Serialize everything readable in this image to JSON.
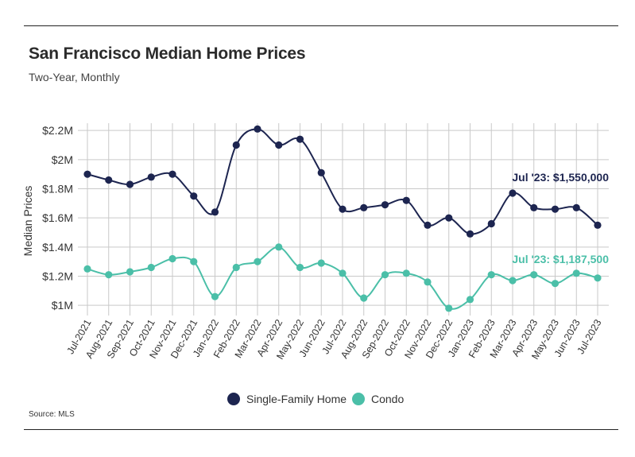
{
  "header": {
    "title": "San Francisco Median Home Prices",
    "subtitle": "Two-Year, Monthly"
  },
  "footer": {
    "source": "Source: MLS"
  },
  "colors": {
    "single_family": "#1d2550",
    "condo": "#4bbfa8",
    "grid": "#c9c9c9"
  },
  "chart_data": {
    "type": "line",
    "title": "San Francisco Median Home Prices",
    "subtitle": "Two-Year, Monthly",
    "xlabel": "",
    "ylabel": "Median Prices",
    "ylim": [
      930000,
      2250000
    ],
    "yticks": [
      1000000,
      1200000,
      1400000,
      1600000,
      1800000,
      2000000,
      2200000
    ],
    "ytick_labels": [
      "$1M",
      "$1.2M",
      "$1.4M",
      "$1.6M",
      "$1.8M",
      "$2M",
      "$2.2M"
    ],
    "grid": true,
    "legend_position": "bottom-center",
    "categories": [
      "Jul-2021",
      "Aug-2021",
      "Sep-2021",
      "Oct-2021",
      "Nov-2021",
      "Dec-2021",
      "Jan-2022",
      "Feb-2022",
      "Mar-2022",
      "Apr-2022",
      "May-2022",
      "Jun-2022",
      "Jul-2022",
      "Aug-2022",
      "Sep-2022",
      "Oct-2022",
      "Nov-2022",
      "Dec-2022",
      "Jan-2023",
      "Feb-2023",
      "Mar-2023",
      "Apr-2023",
      "May-2023",
      "Jun-2023",
      "Jul-2023"
    ],
    "series": [
      {
        "name": "Single-Family Home",
        "color": "#1d2550",
        "values": [
          1900000,
          1860000,
          1830000,
          1880000,
          1900000,
          1750000,
          1640000,
          2100000,
          2210000,
          2100000,
          2140000,
          1910000,
          1660000,
          1670000,
          1690000,
          1720000,
          1550000,
          1600000,
          1490000,
          1560000,
          1770000,
          1670000,
          1660000,
          1670000,
          1550000
        ],
        "annotation": "Jul '23: $1,550,000"
      },
      {
        "name": "Condo",
        "color": "#4bbfa8",
        "values": [
          1250000,
          1210000,
          1230000,
          1260000,
          1320000,
          1300000,
          1060000,
          1260000,
          1300000,
          1400000,
          1260000,
          1290000,
          1220000,
          1050000,
          1210000,
          1220000,
          1160000,
          980000,
          1040000,
          1210000,
          1170000,
          1210000,
          1150000,
          1220000,
          1187500
        ],
        "annotation": "Jul '23: $1,187,500"
      }
    ]
  }
}
